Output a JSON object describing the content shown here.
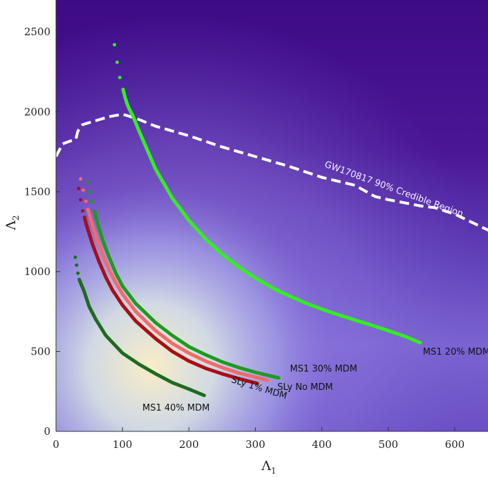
{
  "chart_data": {
    "type": "line",
    "xlabel": "Λ",
    "xlabel_sub": "1",
    "ylabel": "Λ",
    "ylabel_sub": "2",
    "xlim": [
      0,
      650
    ],
    "ylim": [
      0,
      2700
    ],
    "xticks": [
      0,
      100,
      200,
      300,
      400,
      500,
      600
    ],
    "yticks": [
      0,
      500,
      1000,
      1500,
      2000,
      2500
    ],
    "background": "posterior probability density (purple low to cream high)",
    "credible_region": {
      "label": "GW170817 90% Credible Region",
      "color": "#ffffff",
      "points": [
        [
          0,
          1720
        ],
        [
          10,
          1800
        ],
        [
          30,
          1830
        ],
        [
          33,
          1880
        ],
        [
          40,
          1920
        ],
        [
          60,
          1945
        ],
        [
          80,
          1970
        ],
        [
          100,
          1985
        ],
        [
          120,
          1960
        ],
        [
          150,
          1910
        ],
        [
          200,
          1850
        ],
        [
          250,
          1780
        ],
        [
          300,
          1720
        ],
        [
          350,
          1660
        ],
        [
          400,
          1590
        ],
        [
          450,
          1540
        ],
        [
          480,
          1470
        ],
        [
          500,
          1450
        ],
        [
          550,
          1410
        ],
        [
          570,
          1400
        ],
        [
          600,
          1360
        ],
        [
          650,
          1260
        ],
        [
          675,
          1200
        ],
        [
          700,
          1140
        ]
      ]
    },
    "series": [
      {
        "name": "MS1 20% MDM",
        "color": "#33ee22",
        "points": [
          [
            88,
            2420
          ],
          [
            92,
            2310
          ],
          [
            96,
            2215
          ],
          [
            101,
            2140
          ],
          [
            104,
            2090
          ],
          [
            107,
            2050
          ],
          [
            110,
            2020
          ],
          [
            115,
            1980
          ],
          [
            125,
            1880
          ],
          [
            150,
            1640
          ],
          [
            175,
            1460
          ],
          [
            200,
            1320
          ],
          [
            225,
            1205
          ],
          [
            250,
            1110
          ],
          [
            275,
            1030
          ],
          [
            300,
            960
          ],
          [
            325,
            900
          ],
          [
            350,
            850
          ],
          [
            375,
            805
          ],
          [
            400,
            765
          ],
          [
            425,
            730
          ],
          [
            450,
            697
          ],
          [
            475,
            665
          ],
          [
            500,
            630
          ],
          [
            525,
            595
          ],
          [
            548,
            555
          ]
        ],
        "label_at": [
          552,
          480
        ]
      },
      {
        "name": "MS1 30% MDM",
        "color": "#1f9a1f",
        "points": [
          [
            48,
            1560
          ],
          [
            50,
            1500
          ],
          [
            54,
            1440
          ],
          [
            58,
            1380
          ],
          [
            62,
            1310
          ],
          [
            70,
            1200
          ],
          [
            80,
            1090
          ],
          [
            90,
            990
          ],
          [
            100,
            910
          ],
          [
            120,
            800
          ],
          [
            150,
            680
          ],
          [
            175,
            600
          ],
          [
            200,
            530
          ],
          [
            225,
            480
          ],
          [
            250,
            435
          ],
          [
            275,
            400
          ],
          [
            300,
            370
          ],
          [
            325,
            345
          ],
          [
            335,
            335
          ]
        ],
        "label_at": [
          352,
          375
        ]
      },
      {
        "name": "SLy No MDM",
        "color": "#f26a6a",
        "points": [
          [
            37,
            1580
          ],
          [
            41,
            1510
          ],
          [
            45,
            1440
          ],
          [
            48,
            1390
          ],
          [
            52,
            1330
          ],
          [
            60,
            1220
          ],
          [
            70,
            1110
          ],
          [
            80,
            1010
          ],
          [
            90,
            930
          ],
          [
            100,
            860
          ],
          [
            120,
            750
          ],
          [
            150,
            630
          ],
          [
            175,
            550
          ],
          [
            200,
            490
          ],
          [
            225,
            440
          ],
          [
            250,
            400
          ],
          [
            275,
            365
          ],
          [
            300,
            340
          ],
          [
            318,
            320
          ]
        ],
        "label_at": [
          333,
          260
        ]
      },
      {
        "name": "SLy 1% MDM",
        "color": "#a80f15",
        "points": [
          [
            34,
            1520
          ],
          [
            37,
            1450
          ],
          [
            40,
            1380
          ],
          [
            43,
            1340
          ],
          [
            46,
            1290
          ],
          [
            55,
            1170
          ],
          [
            65,
            1060
          ],
          [
            75,
            965
          ],
          [
            85,
            885
          ],
          [
            100,
            790
          ],
          [
            120,
            690
          ],
          [
            150,
            580
          ],
          [
            175,
            500
          ],
          [
            200,
            440
          ],
          [
            225,
            395
          ],
          [
            250,
            360
          ],
          [
            275,
            330
          ],
          [
            303,
            300
          ]
        ],
        "label_at": [
          263,
          308
        ]
      },
      {
        "name": "MS1 40% MDM",
        "color": "#1e6b1e",
        "points": [
          [
            29,
            1090
          ],
          [
            31,
            1040
          ],
          [
            33,
            990
          ],
          [
            35,
            950
          ],
          [
            38,
            920
          ],
          [
            42,
            880
          ],
          [
            50,
            780
          ],
          [
            60,
            700
          ],
          [
            75,
            600
          ],
          [
            100,
            490
          ],
          [
            125,
            420
          ],
          [
            150,
            360
          ],
          [
            175,
            305
          ],
          [
            200,
            265
          ],
          [
            223,
            225
          ]
        ],
        "label_at": [
          130,
          130
        ]
      }
    ]
  }
}
